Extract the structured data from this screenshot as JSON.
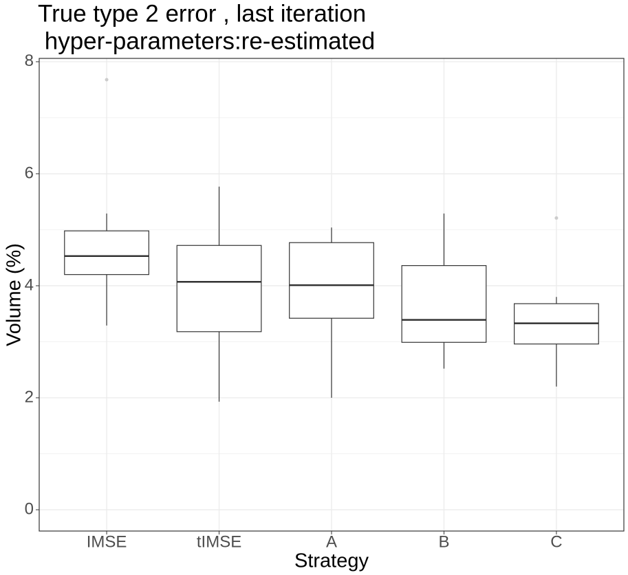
{
  "chart_data": {
    "type": "box",
    "title": [
      "True type 2 error , last iteration",
      " hyper-parameters:re-estimated"
    ],
    "x_label": "Strategy",
    "y_label": "Volume (%)",
    "categories": [
      "IMSE",
      "tIMSE",
      "A",
      "B",
      "C"
    ],
    "boxes": [
      {
        "low": 3.29,
        "q1": 4.2,
        "median": 4.53,
        "q3": 4.98,
        "high": 5.29,
        "outliers": [
          7.68
        ]
      },
      {
        "low": 1.93,
        "q1": 3.18,
        "median": 4.07,
        "q3": 4.72,
        "high": 5.77,
        "outliers": []
      },
      {
        "low": 2.0,
        "q1": 3.42,
        "median": 4.01,
        "q3": 4.77,
        "high": 5.04,
        "outliers": []
      },
      {
        "low": 2.52,
        "q1": 2.99,
        "median": 3.39,
        "q3": 4.36,
        "high": 5.29,
        "outliers": []
      },
      {
        "low": 2.2,
        "q1": 2.96,
        "median": 3.33,
        "q3": 3.68,
        "high": 3.8,
        "outliers": [
          5.21
        ]
      }
    ],
    "ylim": [
      -0.38,
      8.06
    ],
    "yticks": [
      0,
      2,
      4,
      6,
      8
    ],
    "y_minor_ticks": [
      1,
      3,
      5,
      7
    ],
    "grid": true,
    "box_color": "#333333",
    "fill": "#ffffff",
    "outlier_color": "#cccccc"
  }
}
